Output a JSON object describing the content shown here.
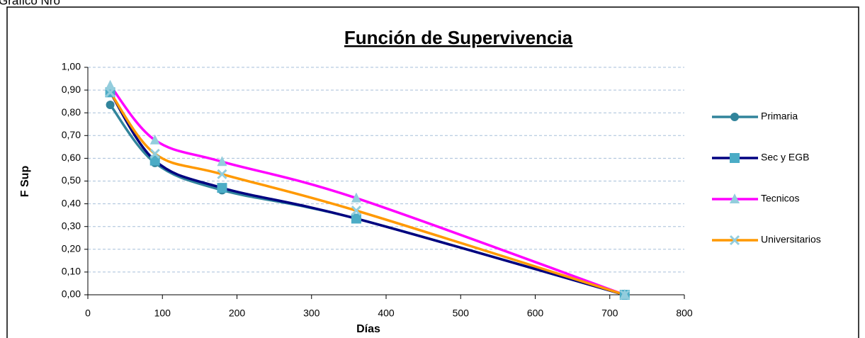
{
  "caption": "Gráfico Nro",
  "chart_data": {
    "type": "line",
    "title": "Función de Supervivencia",
    "xlabel": "Días",
    "ylabel": "F Sup",
    "x": [
      30,
      90,
      180,
      360,
      720
    ],
    "series": [
      {
        "name": "Primaria",
        "color": "#31849b",
        "marker": "circle",
        "marker_color": "#31849b",
        "values": [
          0.835,
          0.58,
          0.46,
          0.335,
          0
        ]
      },
      {
        "name": "Sec y EGB",
        "color": "#000080",
        "marker": "square",
        "marker_color": "#4bacc6",
        "values": [
          0.89,
          0.59,
          0.47,
          0.335,
          0
        ]
      },
      {
        "name": "Tecnicos",
        "color": "#ff00ff",
        "marker": "triangle",
        "marker_color": "#93cddd",
        "values": [
          0.92,
          0.68,
          0.585,
          0.425,
          0
        ]
      },
      {
        "name": "Universitarios",
        "color": "#ff9900",
        "marker": "cross",
        "marker_color": "#93cddd",
        "values": [
          0.89,
          0.62,
          0.53,
          0.37,
          0
        ]
      }
    ],
    "xlim": [
      0,
      800
    ],
    "xticks": [
      0,
      100,
      200,
      300,
      400,
      500,
      600,
      700,
      800
    ],
    "ylim": [
      0,
      1
    ],
    "yticks": [
      {
        "value": 0,
        "label": "0,00"
      },
      {
        "value": 0.1,
        "label": "0,10"
      },
      {
        "value": 0.2,
        "label": "0,20"
      },
      {
        "value": 0.3,
        "label": "0,30"
      },
      {
        "value": 0.4,
        "label": "0,40"
      },
      {
        "value": 0.5,
        "label": "0,50"
      },
      {
        "value": 0.6,
        "label": "0,60"
      },
      {
        "value": 0.7,
        "label": "0,70"
      },
      {
        "value": 0.8,
        "label": "0,80"
      },
      {
        "value": 0.9,
        "label": "0,90"
      },
      {
        "value": 1,
        "label": "1,00"
      }
    ],
    "grid": true,
    "smooth": true,
    "legend": "right"
  }
}
